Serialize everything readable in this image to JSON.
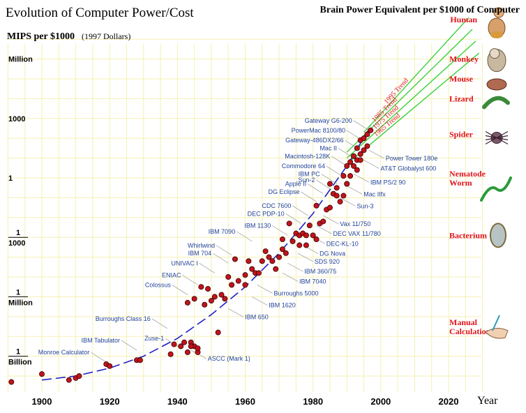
{
  "chart_data": {
    "type": "scatter",
    "title": "Evolution of Computer Power/Cost",
    "ylabel": "MIPS per $1000",
    "ylabel_note": "(1997 Dollars)",
    "xlabel": "Year",
    "right_title": "Brain Power Equivalent per $1000 of Computer",
    "xlim": [
      1890,
      2030
    ],
    "ylim_log10": [
      -10.5,
      8
    ],
    "grid": true,
    "x_ticks": [
      {
        "value": 1900,
        "label": "1900"
      },
      {
        "value": 1920,
        "label": "1920"
      },
      {
        "value": 1940,
        "label": "1940"
      },
      {
        "value": 1960,
        "label": "1960"
      },
      {
        "value": 1980,
        "label": "1980"
      },
      {
        "value": 2000,
        "label": "2000"
      },
      {
        "value": 2020,
        "label": "2020"
      }
    ],
    "y_ticks": [
      {
        "log10": 6,
        "label": "Million"
      },
      {
        "log10": 3,
        "label": "1000"
      },
      {
        "log10": 0,
        "label": "1"
      },
      {
        "log10": -3,
        "top": "1",
        "bottom": "1000"
      },
      {
        "log10": -6,
        "top": "1",
        "bottom": "Million"
      },
      {
        "log10": -9,
        "top": "1",
        "bottom": "Billion"
      }
    ],
    "brain_equivalents": [
      {
        "label": "Human",
        "log10": 8.0
      },
      {
        "label": "Monkey",
        "log10": 6.0
      },
      {
        "label": "Mouse",
        "log10": 5.0
      },
      {
        "label": "Lizard",
        "log10": 4.0
      },
      {
        "label": "Spider",
        "log10": 2.2
      },
      {
        "label": "Nematode Worm",
        "log10": 0.0
      },
      {
        "label": "Bacterium",
        "log10": -2.9
      },
      {
        "label": "Manual Calculation",
        "log10": -7.5
      }
    ],
    "trends": [
      {
        "label": "1995 Trend",
        "from": [
          1995,
          2.3
        ],
        "to": [
          2026,
          8.1
        ]
      },
      {
        "label": "1985 Trend",
        "from": [
          1990,
          1.3
        ],
        "to": [
          2027,
          7.5
        ]
      },
      {
        "label": "1975 Trend",
        "from": [
          1990,
          1.0
        ],
        "to": [
          2028,
          6.9
        ]
      },
      {
        "label": "1965 Trend",
        "from": [
          1990,
          0.7
        ],
        "to": [
          2029,
          6.3
        ]
      }
    ],
    "trend_curve": [
      [
        1900,
        -10.2
      ],
      [
        1910,
        -10.0
      ],
      [
        1920,
        -9.6
      ],
      [
        1930,
        -9.0
      ],
      [
        1940,
        -8.1
      ],
      [
        1950,
        -6.9
      ],
      [
        1960,
        -5.5
      ],
      [
        1970,
        -3.8
      ],
      [
        1980,
        -1.8
      ],
      [
        1990,
        0.6
      ],
      [
        1997,
        2.6
      ]
    ],
    "points": [
      [
        1891,
        -10.3
      ],
      [
        1900,
        -9.9
      ],
      [
        1908,
        -10.2
      ],
      [
        1910,
        -10.1
      ],
      [
        1911,
        -10.0
      ],
      [
        1919,
        -9.4
      ],
      [
        1920,
        -9.5
      ],
      [
        1928,
        -9.2
      ],
      [
        1929,
        -9.2
      ],
      [
        1938,
        -8.9
      ],
      [
        1939,
        -8.4
      ],
      [
        1941,
        -8.5
      ],
      [
        1942,
        -8.3
      ],
      [
        1943,
        -8.8
      ],
      [
        1944,
        -8.3
      ],
      [
        1945,
        -8.5
      ],
      [
        1944,
        -8.5
      ],
      [
        1946,
        -8.8
      ],
      [
        1946,
        -8.6
      ],
      [
        1943,
        -6.3
      ],
      [
        1945,
        -6.1
      ],
      [
        1947,
        -5.5
      ],
      [
        1948,
        -6.4
      ],
      [
        1949,
        -5.6
      ],
      [
        1950,
        -6.2
      ],
      [
        1951,
        -6.0
      ],
      [
        1952,
        -7.8
      ],
      [
        1953,
        -5.9
      ],
      [
        1954,
        -6.1
      ],
      [
        1955,
        -5.0
      ],
      [
        1956,
        -5.4
      ],
      [
        1957,
        -4.1
      ],
      [
        1958,
        -5.2
      ],
      [
        1960,
        -5.4
      ],
      [
        1960,
        -4.9
      ],
      [
        1961,
        -4.2
      ],
      [
        1962,
        -4.6
      ],
      [
        1963,
        -4.8
      ],
      [
        1964,
        -4.8
      ],
      [
        1965,
        -4.2
      ],
      [
        1966,
        -3.7
      ],
      [
        1967,
        -4.0
      ],
      [
        1968,
        -4.2
      ],
      [
        1969,
        -4.6
      ],
      [
        1970,
        -4.0
      ],
      [
        1971,
        -3.6
      ],
      [
        1971,
        -3.1
      ],
      [
        1972,
        -3.8
      ],
      [
        1973,
        -2.3
      ],
      [
        1974,
        -3.2
      ],
      [
        1975,
        -2.8
      ],
      [
        1976,
        -3.4
      ],
      [
        1976,
        -2.9
      ],
      [
        1977,
        -2.8
      ],
      [
        1978,
        -2.9
      ],
      [
        1978,
        -3.4
      ],
      [
        1979,
        -2.4
      ],
      [
        1980,
        -2.9
      ],
      [
        1981,
        -1.4
      ],
      [
        1981,
        -3.1
      ],
      [
        1982,
        -2.3
      ],
      [
        1983,
        -2.2
      ],
      [
        1984,
        -1.6
      ],
      [
        1985,
        -1.5
      ],
      [
        1985,
        -0.3
      ],
      [
        1986,
        -0.8
      ],
      [
        1987,
        -0.5
      ],
      [
        1987,
        -0.9
      ],
      [
        1988,
        -1.2
      ],
      [
        1989,
        -0.9
      ],
      [
        1989,
        0.1
      ],
      [
        1990,
        -0.3
      ],
      [
        1990,
        -0.3
      ],
      [
        1990,
        0.6
      ],
      [
        1991,
        0.8
      ],
      [
        1991,
        0.1
      ],
      [
        1992,
        1.1
      ],
      [
        1992,
        0.6
      ],
      [
        1993,
        0.9
      ],
      [
        1993,
        1.5
      ],
      [
        1994,
        1.2
      ],
      [
        1994,
        1.9
      ],
      [
        1995,
        1.4
      ],
      [
        1995,
        2.0
      ],
      [
        1996,
        1.6
      ],
      [
        1996,
        2.2
      ],
      [
        1997,
        2.4
      ],
      [
        1993,
        0.4
      ],
      [
        1994,
        0.9
      ]
    ],
    "annotations": [
      {
        "text": "Gateway G6-200",
        "at": [
          1996.5,
          2.4
        ],
        "pos": "left"
      },
      {
        "text": "PowerMac 8100/80",
        "at": [
          1994.5,
          1.9
        ],
        "pos": "left"
      },
      {
        "text": "Gateway-486DX2/66",
        "at": [
          1994,
          1.4
        ],
        "pos": "left"
      },
      {
        "text": "Mac II",
        "at": [
          1992,
          1.0
        ],
        "pos": "left"
      },
      {
        "text": "Macintosh-128K",
        "at": [
          1990,
          0.6
        ],
        "pos": "left"
      },
      {
        "text": "Commodore 64",
        "at": [
          1988.5,
          0.1
        ],
        "pos": "left"
      },
      {
        "text": "IBM PC",
        "at": [
          1987,
          -0.3
        ],
        "pos": "left"
      },
      {
        "text": "Sun-2",
        "at": [
          1985.5,
          -0.6
        ],
        "pos": "left"
      },
      {
        "text": "Apple II",
        "at": [
          1983,
          -0.8
        ],
        "pos": "left"
      },
      {
        "text": "DG Eclipse",
        "at": [
          1981,
          -1.2
        ],
        "pos": "left"
      },
      {
        "text": "CDC 7600",
        "at": [
          1978.5,
          -1.9
        ],
        "pos": "left"
      },
      {
        "text": "DEC PDP-10",
        "at": [
          1976.5,
          -2.3
        ],
        "pos": "left"
      },
      {
        "text": "IBM 1130",
        "at": [
          1972.5,
          -2.9
        ],
        "pos": "left"
      },
      {
        "text": "IBM 7090",
        "at": [
          1962,
          -3.2
        ],
        "pos": "left"
      },
      {
        "text": "Whirlwind",
        "at": [
          1956,
          -3.9
        ],
        "pos": "left"
      },
      {
        "text": "IBM 704",
        "at": [
          1955,
          -4.3
        ],
        "pos": "left"
      },
      {
        "text": "UNIVAC I",
        "at": [
          1951,
          -4.8
        ],
        "pos": "left"
      },
      {
        "text": "ENIAC",
        "at": [
          1946,
          -5.4
        ],
        "pos": "left"
      },
      {
        "text": "Colossus",
        "at": [
          1943,
          -5.9
        ],
        "pos": "left"
      },
      {
        "text": "Burroughs Class 16",
        "at": [
          1937,
          -7.6
        ],
        "pos": "left"
      },
      {
        "text": "IBM Tabulator",
        "at": [
          1928,
          -8.7
        ],
        "pos": "left"
      },
      {
        "text": "Monroe Calculator",
        "at": [
          1919,
          -9.3
        ],
        "pos": "left"
      },
      {
        "text": "Zuse-1",
        "at": [
          1941,
          -8.6
        ],
        "pos": "left"
      },
      {
        "text": "Power Tower 180e",
        "at": [
          1996.5,
          1.4
        ],
        "pos": "right"
      },
      {
        "text": "AT&T Globalyst 600",
        "at": [
          1995,
          0.9
        ],
        "pos": "right"
      },
      {
        "text": "IBM PS/2 90",
        "at": [
          1992,
          0.2
        ],
        "pos": "right"
      },
      {
        "text": "Mac IIfx",
        "at": [
          1990,
          -0.4
        ],
        "pos": "right"
      },
      {
        "text": "Sun-3",
        "at": [
          1988,
          -1.0
        ],
        "pos": "right"
      },
      {
        "text": "Vax 11/750",
        "at": [
          1983,
          -1.9
        ],
        "pos": "right"
      },
      {
        "text": "DEC VAX 11/780",
        "at": [
          1981,
          -2.4
        ],
        "pos": "right"
      },
      {
        "text": "DEC-KL-10",
        "at": [
          1979,
          -2.9
        ],
        "pos": "right"
      },
      {
        "text": "DG Nova",
        "at": [
          1977,
          -3.4
        ],
        "pos": "right"
      },
      {
        "text": "SDS 920",
        "at": [
          1975.5,
          -3.8
        ],
        "pos": "right"
      },
      {
        "text": "IBM 360/75",
        "at": [
          1972.5,
          -4.3
        ],
        "pos": "right"
      },
      {
        "text": "IBM 7040",
        "at": [
          1971,
          -4.8
        ],
        "pos": "right"
      },
      {
        "text": "Burroughs 5000",
        "at": [
          1963.5,
          -5.4
        ],
        "pos": "right"
      },
      {
        "text": "IBM 1620",
        "at": [
          1962,
          -6.0
        ],
        "pos": "right"
      },
      {
        "text": "IBM 650",
        "at": [
          1955,
          -6.6
        ],
        "pos": "right"
      },
      {
        "text": "ASCC (Mark 1)",
        "at": [
          1944,
          -8.7
        ],
        "pos": "right"
      }
    ],
    "colors": {
      "point": "#c0141c",
      "annotation": "#24449a",
      "brain_label": "#e0141c",
      "trend_line": "#39d039",
      "trend_curve": "#2020c8",
      "grid": "#f6f0b0",
      "title": "#000000"
    }
  }
}
